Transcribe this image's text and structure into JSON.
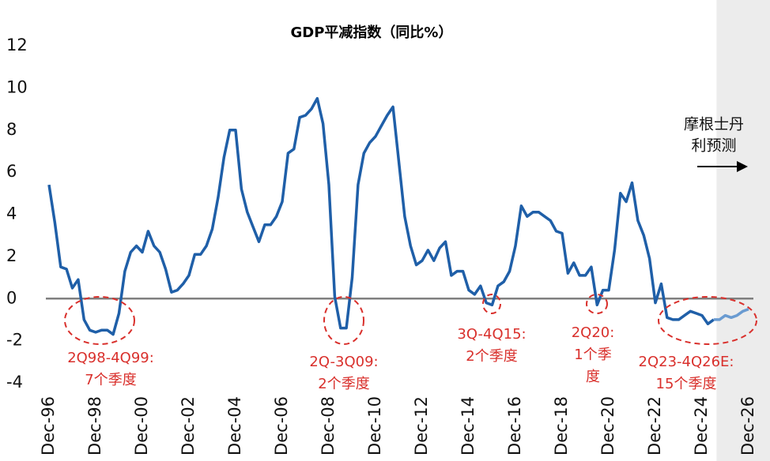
{
  "chart_data": {
    "type": "line",
    "title": "GDP平减指数（同比%）",
    "categories": [
      "Dec-96",
      null,
      null,
      null,
      null,
      null,
      null,
      null,
      "Dec-98",
      null,
      null,
      null,
      null,
      null,
      null,
      null,
      "Dec-00",
      null,
      null,
      null,
      null,
      null,
      null,
      null,
      "Dec-02",
      null,
      null,
      null,
      null,
      null,
      null,
      null,
      "Dec-04",
      null,
      null,
      null,
      null,
      null,
      null,
      null,
      "Dec-06",
      null,
      null,
      null,
      null,
      null,
      null,
      null,
      "Dec-08",
      null,
      null,
      null,
      null,
      null,
      null,
      null,
      "Dec-10",
      null,
      null,
      null,
      null,
      null,
      null,
      null,
      "Dec-12",
      null,
      null,
      null,
      null,
      null,
      null,
      null,
      "Dec-14",
      null,
      null,
      null,
      null,
      null,
      null,
      null,
      "Dec-16",
      null,
      null,
      null,
      null,
      null,
      null,
      null,
      "Dec-18",
      null,
      null,
      null,
      null,
      null,
      null,
      null,
      "Dec-20",
      null,
      null,
      null,
      null,
      null,
      null,
      null,
      "Dec-22",
      null,
      null,
      null,
      null,
      null,
      null,
      null,
      "Dec-24",
      null,
      null,
      null,
      null,
      null,
      null,
      null,
      "Dec-26"
    ],
    "series": [
      {
        "color": "#1f5fa8",
        "values": [
          5.4,
          3.6,
          1.5,
          1.4,
          0.5,
          0.9,
          -1.0,
          -1.5,
          -1.6,
          -1.5,
          -1.5,
          -1.7,
          -0.7,
          1.3,
          2.2,
          2.5,
          2.2,
          3.2,
          2.5,
          2.2,
          1.4,
          0.3,
          0.4,
          0.7,
          1.1,
          2.1,
          2.1,
          2.5,
          3.3,
          4.8,
          6.7,
          8.0,
          8.0,
          5.2,
          4.1,
          3.4,
          2.7,
          3.5,
          3.5,
          3.9,
          4.6,
          6.9,
          7.1,
          8.6,
          8.7,
          9.0,
          9.5,
          8.3,
          5.4,
          0.1,
          -1.4,
          -1.4,
          1.0,
          5.4,
          6.9,
          7.4,
          7.7,
          8.2,
          8.7,
          9.1,
          6.5,
          3.9,
          2.5,
          1.6,
          1.8,
          2.3,
          1.8,
          2.4,
          2.7,
          1.1,
          1.3,
          1.3,
          0.4,
          0.2,
          0.6,
          -0.2,
          -0.3,
          0.6,
          0.8,
          1.3,
          2.5,
          4.4,
          3.9,
          4.1,
          4.1,
          3.9,
          3.7,
          3.2,
          3.1,
          1.2,
          1.7,
          1.1,
          1.1,
          1.5,
          -0.3,
          0.4,
          0.4,
          2.3,
          5.0,
          4.6,
          5.5,
          3.7,
          3.0,
          1.9,
          -0.2,
          0.7,
          -0.9,
          -1.0,
          -1.0,
          -0.8,
          -0.6,
          -0.7,
          -0.8,
          -1.2,
          -1.0,
          null,
          null,
          null,
          null,
          null,
          null
        ]
      },
      {
        "color": "#6a9bd1",
        "values": [
          null,
          null,
          null,
          null,
          null,
          null,
          null,
          null,
          null,
          null,
          null,
          null,
          null,
          null,
          null,
          null,
          null,
          null,
          null,
          null,
          null,
          null,
          null,
          null,
          null,
          null,
          null,
          null,
          null,
          null,
          null,
          null,
          null,
          null,
          null,
          null,
          null,
          null,
          null,
          null,
          null,
          null,
          null,
          null,
          null,
          null,
          null,
          null,
          null,
          null,
          null,
          null,
          null,
          null,
          null,
          null,
          null,
          null,
          null,
          null,
          null,
          null,
          null,
          null,
          null,
          null,
          null,
          null,
          null,
          null,
          null,
          null,
          null,
          null,
          null,
          null,
          null,
          null,
          null,
          null,
          null,
          null,
          null,
          null,
          null,
          null,
          null,
          null,
          null,
          null,
          null,
          null,
          null,
          null,
          null,
          null,
          null,
          null,
          null,
          null,
          null,
          null,
          null,
          null,
          null,
          null,
          null,
          null,
          null,
          null,
          null,
          null,
          null,
          null,
          -1.0,
          -1.0,
          -0.8,
          -0.9,
          -0.8,
          -0.6,
          -0.5
        ]
      }
    ],
    "ylim": [
      -4,
      12
    ],
    "yticks": [
      -4,
      -2,
      0,
      2,
      4,
      6,
      8,
      10,
      12
    ],
    "grid": false,
    "annotations": [
      {
        "lines": [
          "2Q98-4Q99:",
          "7个季度"
        ]
      },
      {
        "lines": [
          "2Q-3Q09:",
          "2个季度"
        ]
      },
      {
        "lines": [
          "3Q-4Q15:",
          "2个季度"
        ]
      },
      {
        "lines": [
          "2Q20:",
          "1个季",
          "度"
        ]
      },
      {
        "lines": [
          "2Q23-4Q26E:",
          "15个季度"
        ]
      }
    ],
    "forecast_label": [
      "摩根士丹",
      "利预测"
    ]
  }
}
